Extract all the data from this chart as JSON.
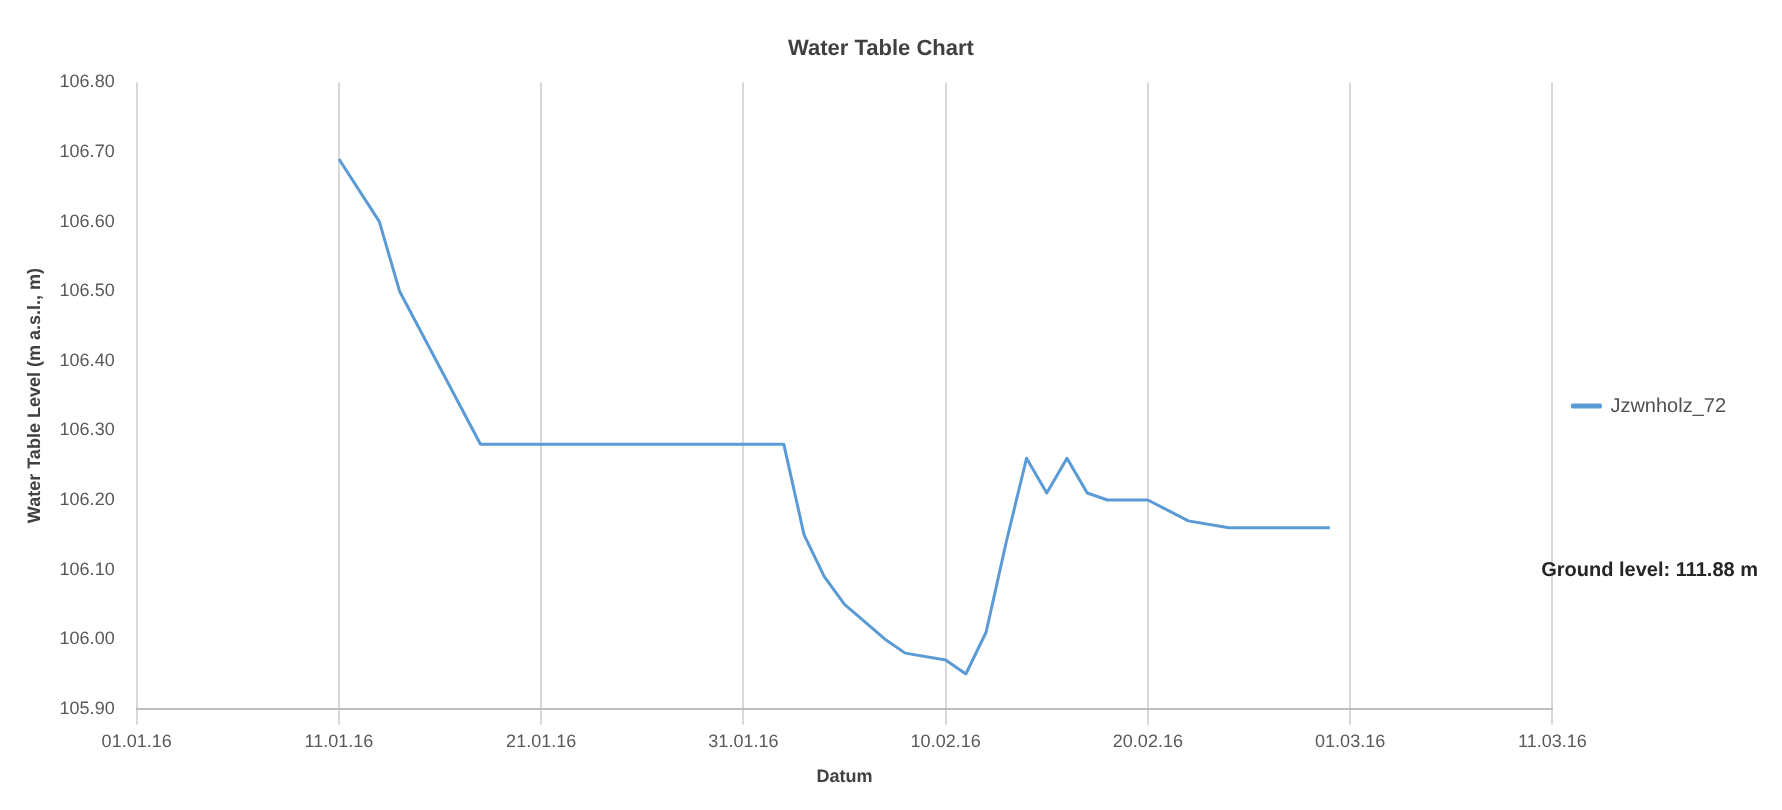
{
  "chart_data": {
    "type": "line",
    "title": "Water Table Chart",
    "xlabel": "Datum",
    "ylabel": "Water Table Level (m a.s.l., m)",
    "annotations": [
      "Ground level: 111.88 m"
    ],
    "series": [
      {
        "name": "Jzwnholz_72",
        "color": "#5b9bd5",
        "x": [
          "--01-11",
          "--01-13",
          "--01-14",
          "--01-16",
          "--01-18",
          "--02-01",
          "--02-02",
          "--02-03",
          "--02-04",
          "--02-05",
          "--02-07",
          "--02-08",
          "--02-10",
          "--02-11",
          "--02-12",
          "--02-13",
          "--02-14",
          "--02-15",
          "--02-16",
          "--02-17",
          "--02-18",
          "--02-20",
          "--02-22",
          "--02-24",
          "--02-29"
        ],
        "values": [
          106.69,
          106.6,
          106.5,
          106.39,
          106.28,
          106.28,
          106.28,
          106.15,
          106.09,
          106.05,
          106.0,
          105.98,
          105.97,
          105.95,
          106.01,
          106.14,
          106.26,
          106.21,
          106.26,
          106.21,
          106.2,
          106.2,
          106.17,
          106.16,
          106.16
        ]
      }
    ],
    "xlim": [
      "--01-01",
      "--03-11"
    ],
    "xticks": [
      {
        "value": "--01-01",
        "label": "01.01.16"
      },
      {
        "value": "--01-11",
        "label": "11.01.16"
      },
      {
        "value": "--01-21",
        "label": "21.01.16"
      },
      {
        "value": "--01-31",
        "label": "31.01.16"
      },
      {
        "value": "--02-10",
        "label": "10.02.16"
      },
      {
        "value": "--02-20",
        "label": "20.02.16"
      },
      {
        "value": "--03-01",
        "label": "01.03.16"
      },
      {
        "value": "--03-11",
        "label": "11.03.16"
      }
    ],
    "ylim": [
      105.9,
      106.8
    ],
    "yticks": [
      {
        "value": 105.9,
        "label": "105.90"
      },
      {
        "value": 106.0,
        "label": "106.00"
      },
      {
        "value": 106.1,
        "label": "106.10"
      },
      {
        "value": 106.2,
        "label": "106.20"
      },
      {
        "value": 106.3,
        "label": "106.30"
      },
      {
        "value": 106.4,
        "label": "106.40"
      },
      {
        "value": 106.5,
        "label": "106.50"
      },
      {
        "value": 106.6,
        "label": "106.60"
      },
      {
        "value": 106.7,
        "label": "106.70"
      },
      {
        "value": 106.8,
        "label": "106.80"
      }
    ],
    "grid": "x",
    "legend": "right",
    "marker": "none",
    "line_style": "solid"
  }
}
